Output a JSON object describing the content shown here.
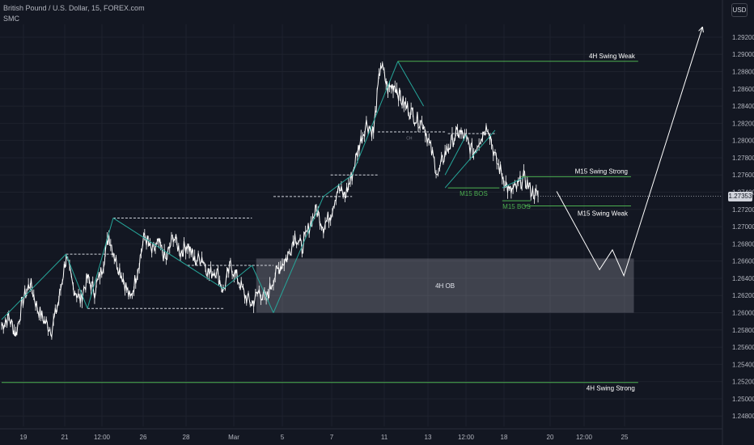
{
  "header": {
    "symbol_line": "British Pound / U.S. Dollar, 15, FOREX.com",
    "indicator": "SMC"
  },
  "toolbar": {
    "currency_label": "USD"
  },
  "chart_data": {
    "type": "line",
    "y_axis": {
      "ticks": [
        "1.29200",
        "1.29000",
        "1.28800",
        "1.28600",
        "1.28400",
        "1.28200",
        "1.28000",
        "1.27800",
        "1.27600",
        "1.27400",
        "1.27200",
        "1.27000",
        "1.26800",
        "1.26600",
        "1.26400",
        "1.26200",
        "1.26000",
        "1.25800",
        "1.25600",
        "1.25400",
        "1.25200",
        "1.25000",
        "1.24800"
      ],
      "ylim": [
        1.2468,
        1.2935
      ]
    },
    "x_axis": {
      "ticks": [
        "19",
        "21",
        "12:00",
        "26",
        "28",
        "Mar",
        "5",
        "7",
        "11",
        "13",
        "12:00",
        "18",
        "20",
        "12:00",
        "25"
      ]
    },
    "last_price": "1.27353",
    "price_series": [
      [
        0,
        1.2585
      ],
      [
        0.5,
        1.2595
      ],
      [
        1,
        1.2575
      ],
      [
        1.5,
        1.2615
      ],
      [
        2,
        1.2635
      ],
      [
        2.5,
        1.2605
      ],
      [
        3,
        1.259
      ],
      [
        3.5,
        1.258
      ],
      [
        4,
        1.2615
      ],
      [
        4.5,
        1.2665
      ],
      [
        5,
        1.263
      ],
      [
        5.5,
        1.2615
      ],
      [
        6,
        1.264
      ],
      [
        6.5,
        1.2625
      ],
      [
        7,
        1.265
      ],
      [
        7.5,
        1.269
      ],
      [
        8,
        1.266
      ],
      [
        8.5,
        1.264
      ],
      [
        9,
        1.2615
      ],
      [
        9.5,
        1.265
      ],
      [
        10,
        1.269
      ],
      [
        10.5,
        1.267
      ],
      [
        11,
        1.268
      ],
      [
        11.5,
        1.266
      ],
      [
        12,
        1.269
      ],
      [
        12.5,
        1.267
      ],
      [
        13,
        1.268
      ],
      [
        13.5,
        1.266
      ],
      [
        14,
        1.2665
      ],
      [
        14.5,
        1.2645
      ],
      [
        15,
        1.265
      ],
      [
        15.5,
        1.2625
      ],
      [
        16,
        1.2655
      ],
      [
        16.5,
        1.264
      ],
      [
        17,
        1.262
      ],
      [
        17.5,
        1.261
      ],
      [
        18,
        1.2625
      ],
      [
        18.5,
        1.2615
      ],
      [
        19,
        1.264
      ],
      [
        19.5,
        1.2655
      ],
      [
        20,
        1.2665
      ],
      [
        20.5,
        1.269
      ],
      [
        21,
        1.2675
      ],
      [
        21.5,
        1.27
      ],
      [
        22,
        1.272
      ],
      [
        22.5,
        1.27
      ],
      [
        23,
        1.2715
      ],
      [
        23.5,
        1.2745
      ],
      [
        24,
        1.2735
      ],
      [
        24.5,
        1.276
      ],
      [
        25,
        1.2795
      ],
      [
        25.5,
        1.282
      ],
      [
        26,
        1.281
      ],
      [
        26.5,
        1.289
      ],
      [
        27,
        1.286
      ],
      [
        27.5,
        1.2865
      ],
      [
        28,
        1.2845
      ],
      [
        28.5,
        1.2835
      ],
      [
        29,
        1.2825
      ],
      [
        29.5,
        1.282
      ],
      [
        30,
        1.279
      ],
      [
        30.5,
        1.276
      ],
      [
        31,
        1.2785
      ],
      [
        31.5,
        1.28
      ],
      [
        32,
        1.281
      ],
      [
        32.5,
        1.28
      ],
      [
        33,
        1.2785
      ],
      [
        33.5,
        1.2805
      ],
      [
        34,
        1.2818
      ],
      [
        34.5,
        1.278
      ],
      [
        35,
        1.276
      ],
      [
        35.5,
        1.274
      ],
      [
        36,
        1.2745
      ],
      [
        36.5,
        1.2757
      ],
      [
        37,
        1.2742
      ],
      [
        37.5,
        1.2735
      ]
    ],
    "structure_lines": [
      {
        "from": [
          0,
          1.2592
        ],
        "to": [
          4.5,
          1.2668
        ]
      },
      {
        "from": [
          4.5,
          1.2668
        ],
        "to": [
          6,
          1.2605
        ]
      },
      {
        "from": [
          6,
          1.2605
        ],
        "to": [
          7.8,
          1.271
        ]
      },
      {
        "from": [
          7.8,
          1.271
        ],
        "to": [
          15.5,
          1.2628
        ]
      },
      {
        "from": [
          15.5,
          1.2628
        ],
        "to": [
          17.5,
          1.2655
        ]
      },
      {
        "from": [
          17.5,
          1.2655
        ],
        "to": [
          19,
          1.26
        ]
      },
      {
        "from": [
          19,
          1.26
        ],
        "to": [
          22.5,
          1.2735
        ]
      },
      {
        "from": [
          22.5,
          1.2735
        ],
        "to": [
          24.5,
          1.276
        ]
      },
      {
        "from": [
          24.5,
          1.276
        ],
        "to": [
          27.7,
          1.2892
        ]
      },
      {
        "from": [
          27.7,
          1.2892
        ],
        "to": [
          29.5,
          1.284
        ]
      },
      {
        "from": [
          31,
          1.276
        ],
        "to": [
          32.5,
          1.2807
        ]
      },
      {
        "from": [
          31,
          1.2745
        ],
        "to": [
          34.5,
          1.2812
        ]
      },
      {
        "from": [
          35,
          1.2745
        ],
        "to": [
          36.5,
          1.2757
        ]
      }
    ],
    "dashed_levels": [
      {
        "y": 1.2668,
        "x0": 4.5,
        "x1": 7.8
      },
      {
        "y": 1.2605,
        "x0": 6,
        "x1": 15.5
      },
      {
        "y": 1.271,
        "x0": 7.8,
        "x1": 17.5
      },
      {
        "y": 1.2655,
        "x0": 13,
        "x1": 19
      },
      {
        "y": 1.2735,
        "x0": 19,
        "x1": 24.5
      },
      {
        "y": 1.276,
        "x0": 23,
        "x1": 26.3
      },
      {
        "y": 1.281,
        "x0": 26.3,
        "x1": 31
      },
      {
        "y": 1.2808,
        "x0": 31.2,
        "x1": 34.6
      }
    ],
    "levels": [
      {
        "label": "4H Swing Weak",
        "y": 1.2892,
        "x0": 27.7,
        "x1": 44.5,
        "color": "#4caf50"
      },
      {
        "label": "M15 Swing Strong",
        "y": 1.2758,
        "x0": 36.3,
        "x1": 44,
        "color": "#4caf50"
      },
      {
        "label": "M15 Swing Weak",
        "y": 1.2724,
        "x0": 36.5,
        "x1": 44,
        "color": "#4caf50"
      },
      {
        "label": "4H Swing Strong",
        "y": 1.2519,
        "x0": 0,
        "x1": 44.5,
        "color": "#4caf50"
      }
    ],
    "bos_labels": [
      {
        "label": "M15 BOS",
        "x0": 31.2,
        "x1": 34.8,
        "y": 1.2745
      },
      {
        "label": "M15 BOS",
        "x0": 35,
        "x1": 37,
        "y": 1.273
      }
    ],
    "order_block": {
      "label": "4H OB",
      "y_top": 1.2663,
      "y_bottom": 1.26,
      "x0": 17.8,
      "x1": 44.2
    },
    "ch_label": {
      "label": "CH",
      "x": 28.5,
      "y": 1.2804
    },
    "projection": [
      [
        38.8,
        1.2741
      ],
      [
        41.8,
        1.265
      ],
      [
        42.7,
        1.2673
      ],
      [
        43.5,
        1.2643
      ],
      [
        49,
        1.2932
      ]
    ]
  }
}
